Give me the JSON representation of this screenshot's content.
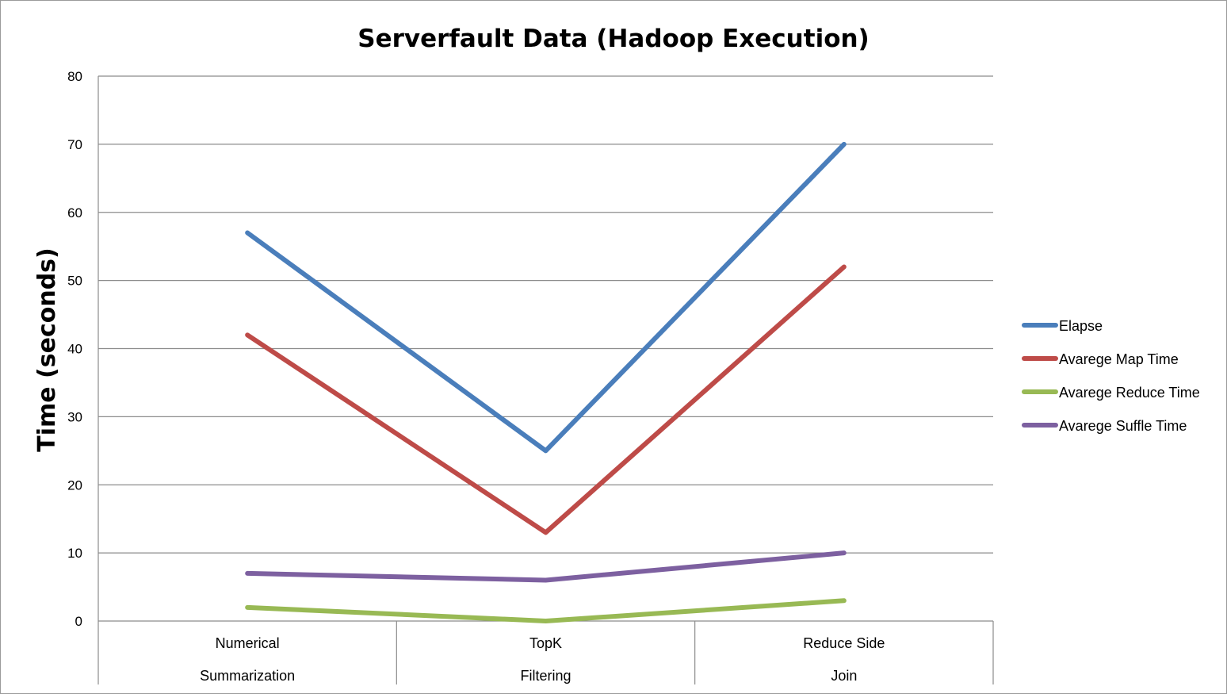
{
  "chart_data": {
    "type": "line",
    "title": "Serverfault Data (Hadoop Execution)",
    "xlabel": "",
    "ylabel": "Time (seconds)",
    "ylim": [
      0,
      80
    ],
    "yticks": [
      0,
      10,
      20,
      30,
      40,
      50,
      60,
      70,
      80
    ],
    "grid": true,
    "legend_position": "right",
    "categories": [
      [
        "Numerical",
        "Summarization"
      ],
      [
        "TopK",
        "Filtering"
      ],
      [
        "Reduce Side",
        "Join"
      ]
    ],
    "series": [
      {
        "name": "Elapse",
        "color": "#4a7ebb",
        "values": [
          57,
          25,
          70
        ]
      },
      {
        "name": "Avarege Map Time",
        "color": "#be4b48",
        "values": [
          42,
          13,
          52
        ]
      },
      {
        "name": "Avarege Reduce Time",
        "color": "#98b954",
        "values": [
          2,
          0,
          3
        ]
      },
      {
        "name": "Avarege Suffle Time",
        "color": "#7d60a0",
        "values": [
          7,
          6,
          10
        ]
      }
    ]
  }
}
